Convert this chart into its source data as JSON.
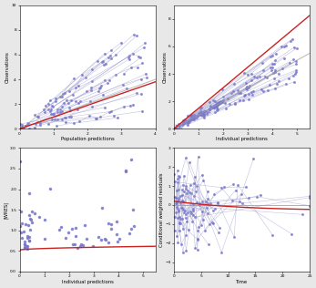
{
  "fig_width": 3.47,
  "fig_height": 3.16,
  "dpi": 100,
  "background": "#e8e8e8",
  "panel_bg": "#ffffff",
  "point_color": "#7777cc",
  "line_color": "#9999cc",
  "red_line_color": "#cc2222",
  "grey_line_color": "#999999",
  "xlabels": [
    "Population predictions",
    "Individual predictions",
    "Individual predictions",
    "Time"
  ],
  "ylabels": [
    "Observations",
    "Observations",
    "|WRES|",
    "Conditional weighted residuals"
  ],
  "seed": 42
}
